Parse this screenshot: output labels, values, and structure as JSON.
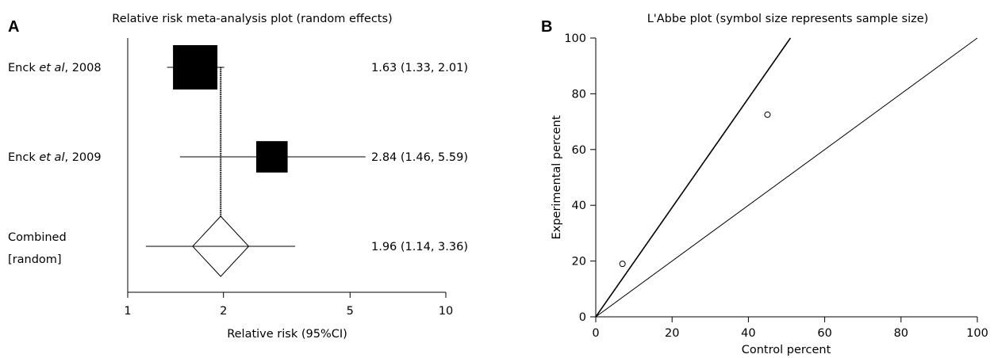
{
  "chart_data": [
    {
      "panel": "A",
      "type": "forest",
      "title": "Relative risk meta-analysis plot (random effects)",
      "xlabel": "Relative risk (95%CI)",
      "xscale": "log",
      "xlim": [
        1,
        10
      ],
      "xticks": [
        1,
        2,
        5,
        10
      ],
      "reference_line": 1.96,
      "studies": [
        {
          "label_pre": "Enck ",
          "label_em": "et al",
          "label_post": ", 2008",
          "rr": 1.63,
          "lo": 1.33,
          "hi": 2.01,
          "weight": 1.0,
          "text": "1.63 (1.33, 2.01)"
        },
        {
          "label_pre": "Enck ",
          "label_em": "et al",
          "label_post": ", 2009",
          "rr": 2.84,
          "lo": 1.46,
          "hi": 5.59,
          "weight": 0.5,
          "text": "2.84 (1.46, 5.59)"
        }
      ],
      "combined": {
        "label_line1": "Combined",
        "label_line2": "[random]",
        "rr": 1.96,
        "lo": 1.14,
        "hi": 3.36,
        "text": "1.96 (1.14, 3.36)"
      }
    },
    {
      "panel": "B",
      "type": "scatter",
      "title": "L'Abbe plot (symbol size represents sample size)",
      "xlabel": "Control percent",
      "ylabel": "Experimental percent",
      "xlim": [
        0,
        100
      ],
      "ylim": [
        0,
        100
      ],
      "xticks": [
        0,
        20,
        40,
        60,
        80,
        100
      ],
      "yticks": [
        0,
        20,
        40,
        60,
        80,
        100
      ],
      "points": [
        {
          "x": 7,
          "y": 19
        },
        {
          "x": 45,
          "y": 72.5
        }
      ],
      "lines": [
        {
          "name": "equality",
          "slope": 1
        },
        {
          "name": "pooled RR",
          "slope": 1.96
        }
      ]
    }
  ]
}
